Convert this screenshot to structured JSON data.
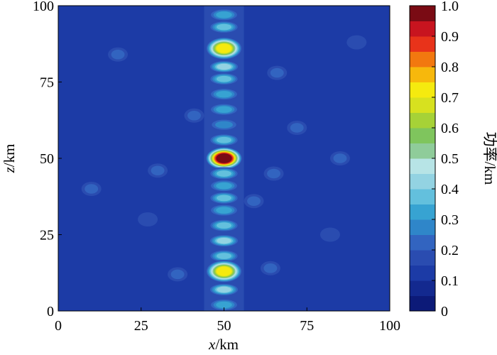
{
  "chart_data": {
    "type": "heatmap",
    "title": "",
    "xlabel": {
      "var": "x",
      "unit": "/km"
    },
    "ylabel": {
      "var": "z",
      "unit": "/km"
    },
    "xlim": [
      0,
      100
    ],
    "ylim": [
      0,
      100
    ],
    "xticks": [
      "0",
      "25",
      "50",
      "75",
      "100"
    ],
    "yticks": [
      "0",
      "25",
      "50",
      "75",
      "100"
    ],
    "colorbar": {
      "label": "功率/km",
      "range": [
        0,
        1.0
      ],
      "ticks": [
        "0",
        "0.1",
        "0.2",
        "0.3",
        "0.4",
        "0.5",
        "0.6",
        "0.7",
        "0.8",
        "0.9",
        "1.0"
      ],
      "levels": 20,
      "colors": [
        "#0c1a78",
        "#13298f",
        "#1c3ba6",
        "#2a4cb0",
        "#3264c0",
        "#2f86c9",
        "#37a3d2",
        "#63c0dd",
        "#93d3e2",
        "#b7e4e6",
        "#8fcc9a",
        "#7fc55d",
        "#a6d237",
        "#d7e11f",
        "#f5ea0f",
        "#f7b80c",
        "#f2780f",
        "#e8331a",
        "#c8141f",
        "#7a0b14"
      ]
    },
    "background_value": 0.12,
    "peak": {
      "x": 50,
      "z": 50,
      "value": 1.0
    },
    "stripe_blobs": [
      {
        "z": 97,
        "value": 0.34
      },
      {
        "z": 93,
        "value": 0.36
      },
      {
        "z": 86,
        "value": 0.74
      },
      {
        "z": 80,
        "value": 0.42
      },
      {
        "z": 76,
        "value": 0.36
      },
      {
        "z": 71,
        "value": 0.34
      },
      {
        "z": 66,
        "value": 0.32
      },
      {
        "z": 61,
        "value": 0.28
      },
      {
        "z": 56,
        "value": 0.36
      },
      {
        "z": 50,
        "value": 1.0
      },
      {
        "z": 45,
        "value": 0.38
      },
      {
        "z": 41,
        "value": 0.3
      },
      {
        "z": 37,
        "value": 0.38
      },
      {
        "z": 33,
        "value": 0.32
      },
      {
        "z": 28,
        "value": 0.36
      },
      {
        "z": 23,
        "value": 0.44
      },
      {
        "z": 18,
        "value": 0.38
      },
      {
        "z": 13,
        "value": 0.72
      },
      {
        "z": 7,
        "value": 0.4
      },
      {
        "z": 2,
        "value": 0.34
      }
    ],
    "side_blobs": [
      {
        "x": 66,
        "z": 78,
        "value": 0.22
      },
      {
        "x": 72,
        "z": 60,
        "value": 0.2
      },
      {
        "x": 65,
        "z": 45,
        "value": 0.22
      },
      {
        "x": 85,
        "z": 50,
        "value": 0.2
      },
      {
        "x": 30,
        "z": 46,
        "value": 0.2
      },
      {
        "x": 18,
        "z": 84,
        "value": 0.2
      },
      {
        "x": 10,
        "z": 40,
        "value": 0.2
      },
      {
        "x": 27,
        "z": 30,
        "value": 0.19
      },
      {
        "x": 82,
        "z": 25,
        "value": 0.19
      },
      {
        "x": 64,
        "z": 14,
        "value": 0.2
      },
      {
        "x": 36,
        "z": 12,
        "value": 0.2
      },
      {
        "x": 90,
        "z": 88,
        "value": 0.18
      },
      {
        "x": 41,
        "z": 64,
        "value": 0.2
      },
      {
        "x": 59,
        "z": 36,
        "value": 0.22
      }
    ]
  }
}
